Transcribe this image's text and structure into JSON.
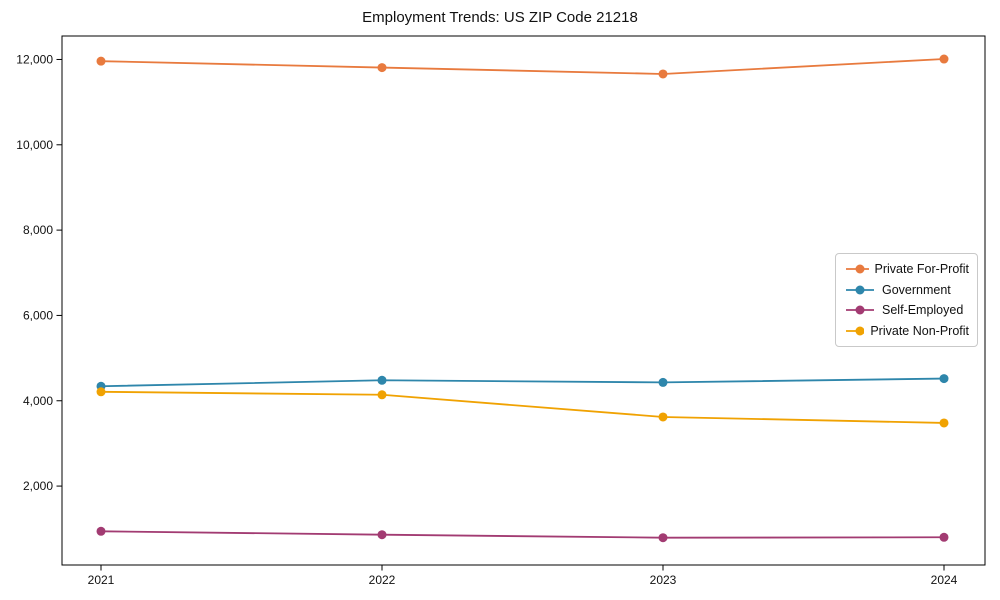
{
  "chart_data": {
    "type": "line",
    "title": "Employment Trends: US ZIP Code 21218",
    "categories": [
      "2021",
      "2022",
      "2023",
      "2024"
    ],
    "series": [
      {
        "name": "Private For-Profit",
        "color": "#e87a3e",
        "values": [
          11960,
          11810,
          11660,
          12010
        ]
      },
      {
        "name": "Government",
        "color": "#2e86ab",
        "values": [
          4340,
          4480,
          4430,
          4520
        ]
      },
      {
        "name": "Self-Employed",
        "color": "#a23b72",
        "values": [
          940,
          860,
          790,
          800
        ]
      },
      {
        "name": "Private Non-Profit",
        "color": "#f0a202",
        "values": [
          4210,
          4140,
          3620,
          3480
        ]
      }
    ],
    "xlabel": "",
    "ylabel": "",
    "ylim": [
      150,
      12550
    ],
    "yticks": [
      2000,
      4000,
      6000,
      8000,
      10000,
      12000
    ],
    "ytick_labels": [
      "2,000",
      "4,000",
      "6,000",
      "8,000",
      "10,000",
      "12,000"
    ],
    "grid": false,
    "legend_position": "center right",
    "marker": "circle"
  }
}
